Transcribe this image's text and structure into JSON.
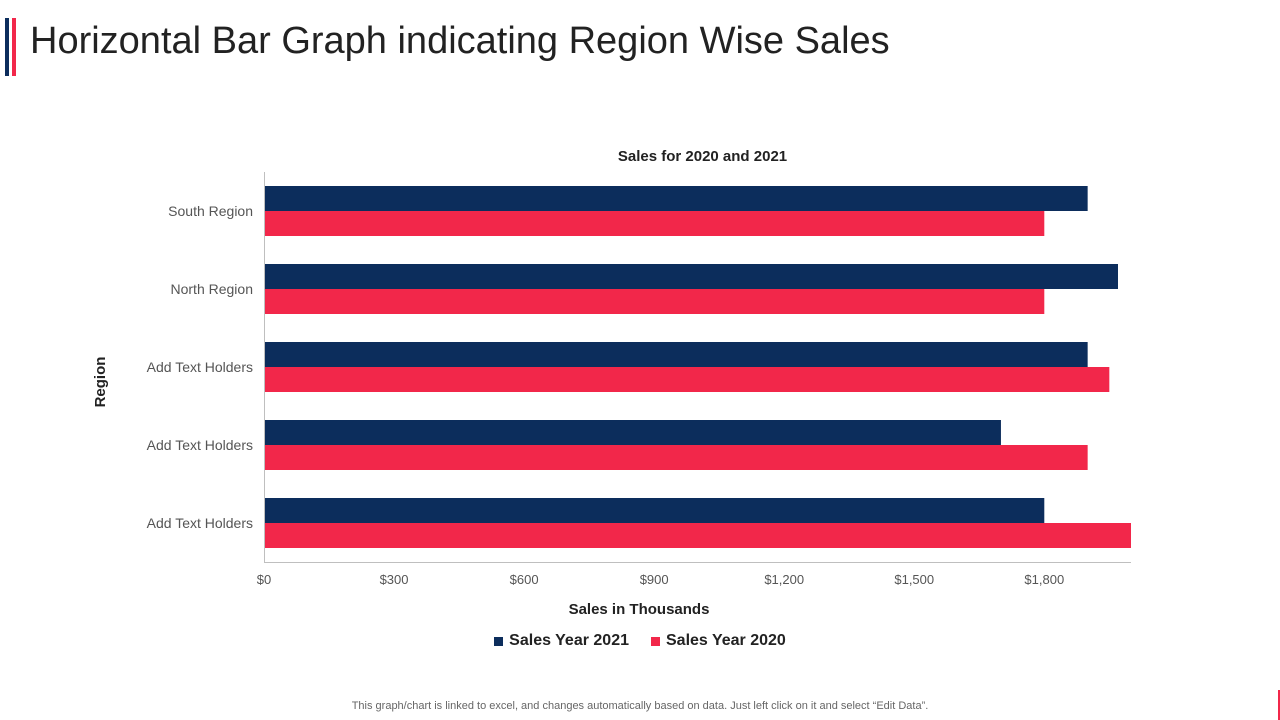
{
  "slide": {
    "title": "Horizontal Bar Graph indicating Region Wise Sales",
    "footer": "This graph/chart is linked to excel,  and changes automatically based on data. Just left click on it and select “Edit Data”."
  },
  "colors": {
    "navy": "#0c2d5c",
    "red": "#f2274a",
    "axis": "#bfbfbf",
    "text": "#222222",
    "tick": "#555555"
  },
  "chart_data": {
    "type": "bar",
    "orientation": "horizontal",
    "title": "Sales for 2020 and 2021",
    "xlabel": "Sales in Thousands",
    "ylabel": "Region",
    "categories": [
      "South Region",
      "North Region",
      "Add Text Holders",
      "Add Text Holders",
      "Add Text Holders"
    ],
    "series": [
      {
        "name": "Sales Year 2021",
        "color": "#0c2d5c",
        "values": [
          1900,
          1970,
          1900,
          1700,
          1800
        ]
      },
      {
        "name": "Sales Year 2020",
        "color": "#f2274a",
        "values": [
          1800,
          1800,
          1950,
          1900,
          2000
        ]
      }
    ],
    "xlim": [
      0,
      2000
    ],
    "xticks": [
      0,
      300,
      600,
      900,
      1200,
      1500,
      1800
    ],
    "xtick_labels": [
      "$0",
      "$300",
      "$600",
      "$900",
      "$1,200",
      "$1,500",
      "$1,800"
    ],
    "grid": false,
    "legend": "bottom-center"
  }
}
